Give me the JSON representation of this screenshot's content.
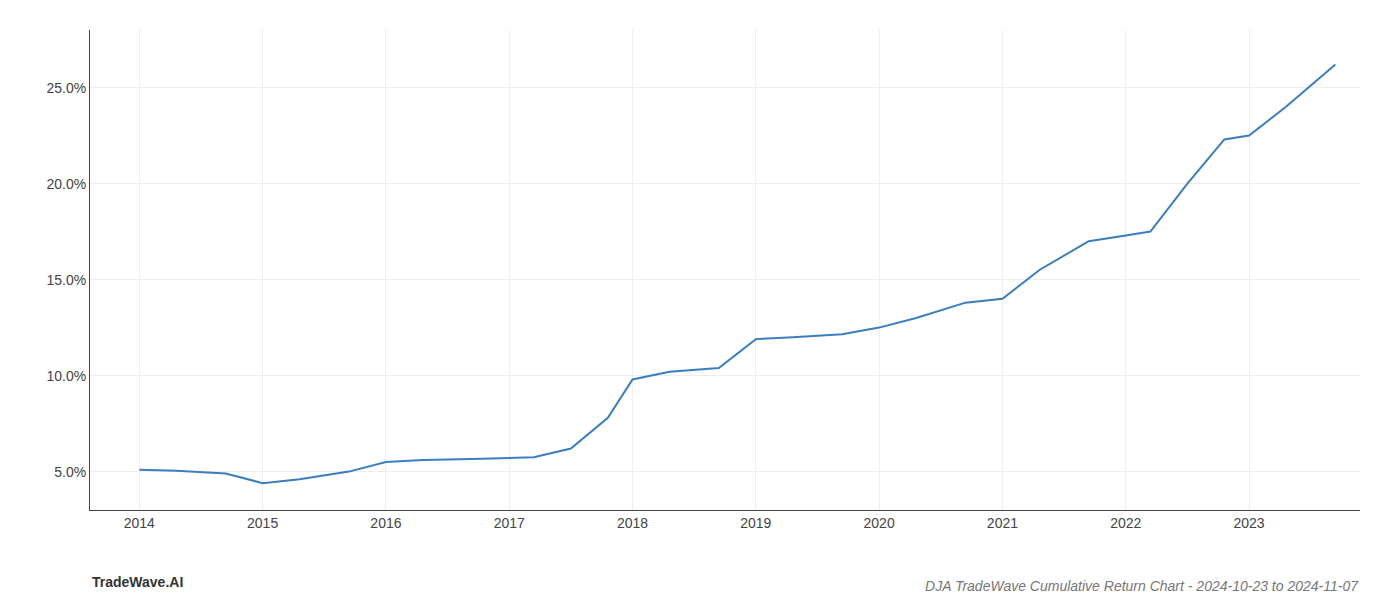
{
  "chart_data": {
    "type": "line",
    "title": "DJA TradeWave Cumulative Return Chart - 2024-10-23 to 2024-11-07",
    "annotations": [
      "TradeWave.AI"
    ],
    "x": [
      2014.0,
      2014.3,
      2014.7,
      2015.0,
      2015.3,
      2015.7,
      2016.0,
      2016.3,
      2016.7,
      2017.0,
      2017.2,
      2017.5,
      2017.8,
      2018.0,
      2018.3,
      2018.7,
      2019.0,
      2019.3,
      2019.7,
      2020.0,
      2020.3,
      2020.7,
      2021.0,
      2021.3,
      2021.7,
      2022.0,
      2022.2,
      2022.5,
      2022.8,
      2023.0,
      2023.3,
      2023.7
    ],
    "values": [
      5.1,
      5.05,
      4.9,
      4.4,
      4.6,
      5.0,
      5.5,
      5.6,
      5.65,
      5.7,
      5.75,
      6.2,
      7.8,
      9.8,
      10.2,
      10.4,
      11.9,
      12.0,
      12.15,
      12.5,
      13.0,
      13.8,
      14.0,
      15.5,
      17.0,
      17.3,
      17.5,
      20.0,
      22.3,
      22.5,
      24.0,
      26.2
    ],
    "color": "#3a7ebf",
    "xlim": [
      2013.6,
      2023.9
    ],
    "xticks": [
      2014,
      2015,
      2016,
      2017,
      2018,
      2019,
      2020,
      2021,
      2022,
      2023
    ],
    "ylim": [
      3.0,
      28.0
    ],
    "yticks": [
      {
        "value": 5.0,
        "label": "5.0%"
      },
      {
        "value": 10.0,
        "label": "10.0%"
      },
      {
        "value": 15.0,
        "label": "15.0%"
      },
      {
        "value": 20.0,
        "label": "20.0%"
      },
      {
        "value": 25.0,
        "label": "25.0%"
      }
    ],
    "grid": true
  }
}
